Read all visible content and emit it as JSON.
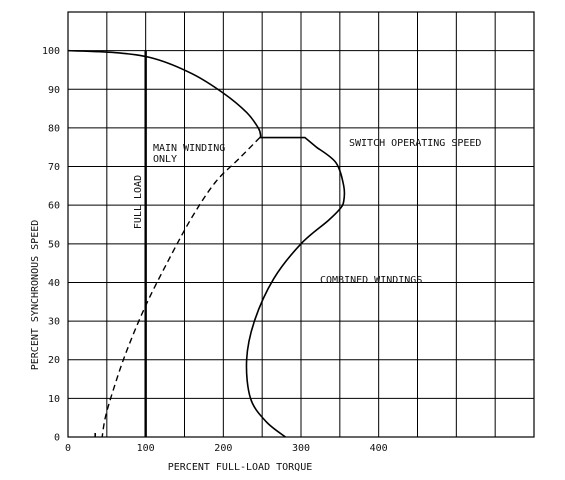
{
  "chart_data": {
    "type": "line",
    "title": "",
    "xlabel": "PERCENT FULL-LOAD TORQUE",
    "ylabel": "PERCENT SYNCHRONOUS SPEED",
    "xlim": [
      0,
      600
    ],
    "ylim": [
      0,
      110
    ],
    "grid": true,
    "x_tick_labels": [
      "0",
      "100",
      "200",
      "300",
      "400"
    ],
    "y_tick_labels": [
      "0",
      "10",
      "20",
      "30",
      "40",
      "50",
      "60",
      "70",
      "80",
      "90",
      "100"
    ],
    "annotations": {
      "main_winding_line1": "MAIN WINDING",
      "main_winding_line2": "ONLY",
      "full_load": "FULL LOAD",
      "switch_speed": "SWITCH OPERATING SPEED",
      "combined": "COMBINED WINDINGS"
    },
    "series": [
      {
        "style": "solid",
        "points": [
          [
            0,
            100
          ],
          [
            60,
            99.5
          ],
          [
            110,
            98
          ],
          [
            160,
            94
          ],
          [
            200,
            89
          ],
          [
            230,
            84
          ],
          [
            245,
            80
          ],
          [
            248,
            78
          ],
          [
            247,
            77.5
          ]
        ]
      },
      {
        "style": "dashed",
        "points": [
          [
            247,
            77.5
          ],
          [
            220,
            72
          ],
          [
            190,
            66
          ],
          [
            160,
            57
          ],
          [
            130,
            46
          ],
          [
            100,
            34
          ],
          [
            75,
            22
          ],
          [
            58,
            12
          ],
          [
            48,
            5
          ],
          [
            44,
            0
          ]
        ]
      },
      {
        "style": "solid",
        "points": [
          [
            247,
            77.5
          ],
          [
            305,
            77.5
          ],
          [
            320,
            75
          ],
          [
            345,
            71
          ],
          [
            355,
            65
          ],
          [
            355,
            61
          ],
          [
            350,
            59
          ],
          [
            335,
            56
          ],
          [
            300,
            50
          ],
          [
            265,
            41
          ],
          [
            240,
            30
          ],
          [
            230,
            20
          ],
          [
            235,
            10
          ],
          [
            255,
            4
          ],
          [
            280,
            0
          ]
        ]
      },
      {
        "style": "solid",
        "points": [
          [
            100,
            100
          ],
          [
            100,
            0
          ]
        ]
      },
      {
        "style": "solid",
        "points": [
          [
            35,
            0
          ],
          [
            35,
            1
          ],
          [
            35,
            0
          ]
        ]
      }
    ]
  }
}
